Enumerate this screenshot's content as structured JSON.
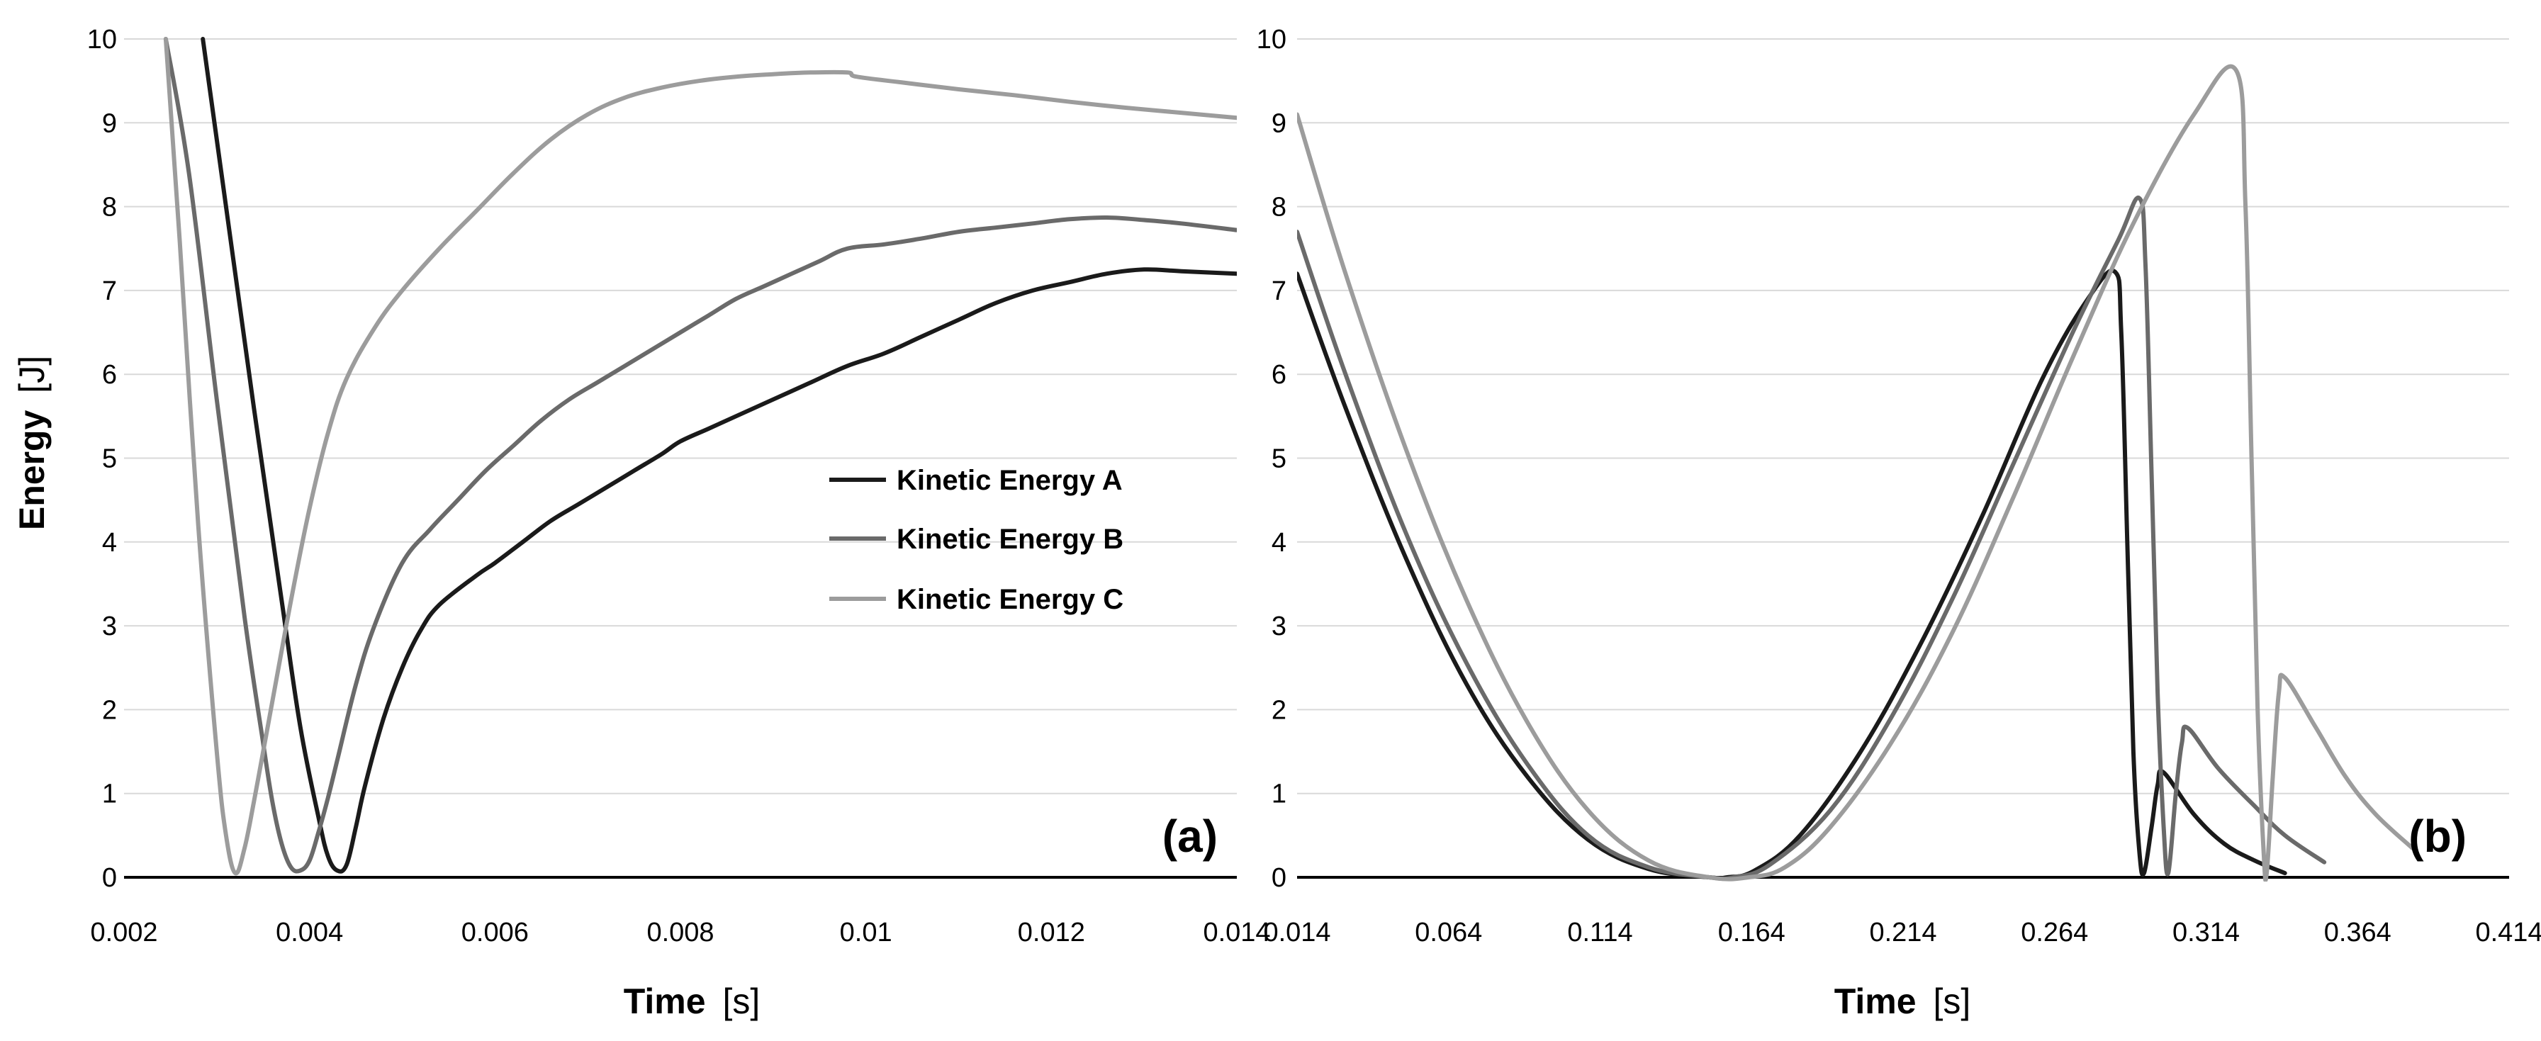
{
  "chart_data": [
    {
      "type": "line",
      "panel_label": "(a)",
      "xlabel": "Time",
      "xunit": "[s]",
      "ylabel": "Energy",
      "yunit": "[J]",
      "xlim": [
        0.002,
        0.014
      ],
      "ylim": [
        0,
        10
      ],
      "xticks": [
        "0.002",
        "0.004",
        "0.006",
        "0.008",
        "0.01",
        "0.012",
        "0.014"
      ],
      "xtick_values": [
        0.002,
        0.004,
        0.006,
        0.008,
        0.01,
        0.012,
        0.014
      ],
      "yticks": [
        "0",
        "1",
        "2",
        "3",
        "4",
        "5",
        "6",
        "7",
        "8",
        "9",
        "10"
      ],
      "grid": "horizontal",
      "legend_position": "center-right",
      "series": [
        {
          "name": "Kinetic Energy A",
          "color": "#1a1a1a",
          "x": [
            0.00285,
            0.0031,
            0.0034,
            0.0037,
            0.0039,
            0.0041,
            0.0042,
            0.0043,
            0.0044,
            0.0045,
            0.0046,
            0.0048,
            0.005,
            0.0052,
            0.0054,
            0.0058,
            0.006,
            0.0063,
            0.0066,
            0.0069,
            0.0072,
            0.0075,
            0.0078,
            0.008,
            0.0083,
            0.0086,
            0.009,
            0.0094,
            0.0098,
            0.0102,
            0.0106,
            0.011,
            0.0114,
            0.0118,
            0.0122,
            0.0126,
            0.013,
            0.0134,
            0.014
          ],
          "y": [
            10.0,
            8.0,
            5.6,
            3.3,
            1.8,
            0.7,
            0.25,
            0.08,
            0.15,
            0.6,
            1.1,
            1.9,
            2.5,
            2.95,
            3.25,
            3.6,
            3.75,
            4.0,
            4.25,
            4.45,
            4.65,
            4.85,
            5.05,
            5.2,
            5.35,
            5.5,
            5.7,
            5.9,
            6.1,
            6.25,
            6.45,
            6.65,
            6.85,
            7.0,
            7.1,
            7.2,
            7.25,
            7.23,
            7.2
          ]
        },
        {
          "name": "Kinetic Energy B",
          "color": "#6a6a6a",
          "x": [
            0.00245,
            0.0027,
            0.003,
            0.0033,
            0.0035,
            0.0036,
            0.0037,
            0.0038,
            0.0039,
            0.004,
            0.0041,
            0.0042,
            0.0043,
            0.0045,
            0.0047,
            0.005,
            0.0053,
            0.0056,
            0.0059,
            0.0062,
            0.0065,
            0.0068,
            0.0071,
            0.0074,
            0.0077,
            0.008,
            0.0083,
            0.0086,
            0.0089,
            0.0092,
            0.0095,
            0.0098,
            0.0102,
            0.0106,
            0.011,
            0.0114,
            0.0118,
            0.0122,
            0.0126,
            0.013,
            0.0134,
            0.014
          ],
          "y": [
            10.0,
            8.4,
            5.7,
            3.1,
            1.6,
            0.9,
            0.4,
            0.12,
            0.08,
            0.2,
            0.55,
            0.95,
            1.4,
            2.3,
            3.0,
            3.75,
            4.15,
            4.5,
            4.85,
            5.15,
            5.45,
            5.7,
            5.9,
            6.1,
            6.3,
            6.5,
            6.7,
            6.9,
            7.05,
            7.2,
            7.35,
            7.5,
            7.55,
            7.62,
            7.7,
            7.75,
            7.8,
            7.85,
            7.87,
            7.84,
            7.8,
            7.72
          ]
        },
        {
          "name": "Kinetic Energy C",
          "color": "#9c9c9c",
          "x": [
            0.00245,
            0.0026,
            0.0028,
            0.003,
            0.0031,
            0.0032,
            0.0033,
            0.0034,
            0.0035,
            0.0036,
            0.0038,
            0.004,
            0.0042,
            0.0044,
            0.0047,
            0.005,
            0.0054,
            0.0058,
            0.0062,
            0.0066,
            0.007,
            0.0074,
            0.0078,
            0.0082,
            0.0086,
            0.009,
            0.0094,
            0.0098,
            0.0099,
            0.0104,
            0.011,
            0.0116,
            0.0122,
            0.0128,
            0.0134,
            0.014
          ],
          "y": [
            10.0,
            7.6,
            4.2,
            1.5,
            0.5,
            0.05,
            0.35,
            0.9,
            1.5,
            2.1,
            3.3,
            4.4,
            5.3,
            5.95,
            6.55,
            7.0,
            7.5,
            7.95,
            8.4,
            8.8,
            9.1,
            9.3,
            9.42,
            9.5,
            9.55,
            9.58,
            9.6,
            9.6,
            9.55,
            9.48,
            9.4,
            9.33,
            9.25,
            9.18,
            9.12,
            9.06
          ]
        }
      ]
    },
    {
      "type": "line",
      "panel_label": "(b)",
      "xlabel": "Time",
      "xunit": "[s]",
      "xlim": [
        0.014,
        0.414
      ],
      "ylim": [
        0,
        10
      ],
      "xticks": [
        "0.014",
        "0.064",
        "0.114",
        "0.164",
        "0.214",
        "0.264",
        "0.314",
        "0.364",
        "0.414"
      ],
      "xtick_values": [
        0.014,
        0.064,
        0.114,
        0.164,
        0.214,
        0.264,
        0.314,
        0.364,
        0.414
      ],
      "yticks": [
        "0",
        "1",
        "2",
        "3",
        "4",
        "5",
        "6",
        "7",
        "8",
        "9",
        "10"
      ],
      "grid": "horizontal",
      "series": [
        {
          "name": "Kinetic Energy A",
          "color": "#1a1a1a",
          "x": [
            0.014,
            0.03,
            0.05,
            0.07,
            0.09,
            0.11,
            0.13,
            0.15,
            0.156,
            0.165,
            0.18,
            0.2,
            0.22,
            0.24,
            0.26,
            0.275,
            0.284,
            0.286,
            0.288,
            0.29,
            0.292,
            0.2935,
            0.296,
            0.298,
            0.3,
            0.31,
            0.32,
            0.33,
            0.34
          ],
          "y": [
            7.2,
            5.6,
            3.8,
            2.3,
            1.2,
            0.45,
            0.1,
            0.0,
            0.0,
            0.08,
            0.5,
            1.5,
            2.8,
            4.3,
            5.95,
            6.9,
            7.22,
            6.5,
            4.0,
            1.5,
            0.3,
            0.05,
            0.6,
            1.1,
            1.25,
            0.75,
            0.4,
            0.2,
            0.05
          ]
        },
        {
          "name": "Kinetic Energy B",
          "color": "#6a6a6a",
          "x": [
            0.014,
            0.03,
            0.05,
            0.07,
            0.09,
            0.11,
            0.13,
            0.15,
            0.158,
            0.17,
            0.19,
            0.21,
            0.23,
            0.25,
            0.27,
            0.285,
            0.292,
            0.294,
            0.296,
            0.298,
            0.3,
            0.3015,
            0.304,
            0.306,
            0.308,
            0.318,
            0.33,
            0.34,
            0.353
          ],
          "y": [
            7.7,
            6.0,
            4.1,
            2.55,
            1.35,
            0.5,
            0.12,
            0.0,
            0.0,
            0.15,
            0.8,
            1.9,
            3.3,
            4.9,
            6.5,
            7.6,
            8.1,
            7.3,
            4.8,
            2.2,
            0.6,
            0.05,
            1.0,
            1.6,
            1.78,
            1.3,
            0.85,
            0.5,
            0.18
          ]
        },
        {
          "name": "Kinetic Energy C",
          "color": "#9c9c9c",
          "x": [
            0.014,
            0.03,
            0.05,
            0.07,
            0.09,
            0.11,
            0.13,
            0.15,
            0.163,
            0.175,
            0.19,
            0.21,
            0.23,
            0.25,
            0.27,
            0.29,
            0.31,
            0.324,
            0.327,
            0.329,
            0.331,
            0.333,
            0.334,
            0.336,
            0.338,
            0.34,
            0.35,
            0.36,
            0.37,
            0.382
          ],
          "y": [
            9.1,
            7.2,
            5.1,
            3.3,
            1.85,
            0.8,
            0.2,
            0.0,
            0.0,
            0.12,
            0.6,
            1.6,
            2.9,
            4.5,
            6.2,
            7.8,
            9.1,
            9.62,
            8.0,
            5.0,
            2.0,
            0.3,
            0.05,
            1.2,
            2.2,
            2.38,
            1.8,
            1.2,
            0.75,
            0.35
          ]
        }
      ]
    }
  ],
  "legend": {
    "items": [
      "Kinetic Energy A",
      "Kinetic Energy B",
      "Kinetic Energy C"
    ]
  }
}
